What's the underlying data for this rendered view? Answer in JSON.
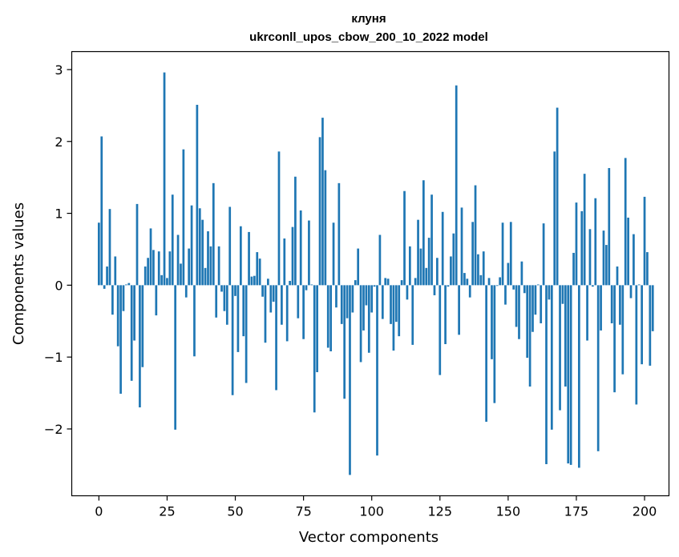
{
  "chart_data": {
    "type": "bar",
    "title": "клуня",
    "subtitle": "ukrconll_upos_cbow_200_10_2022 model",
    "xlabel": "Vector components",
    "ylabel": "Components values",
    "xlim": [
      -9.95,
      208.95
    ],
    "ylim": [
      -2.93,
      3.25
    ],
    "xticks": [
      0,
      25,
      50,
      75,
      100,
      125,
      150,
      175,
      200
    ],
    "yticks": [
      -2,
      -1,
      0,
      1,
      2,
      3
    ],
    "ytick_labels": [
      "−2",
      "−1",
      "0",
      "1",
      "2",
      "3"
    ],
    "bar_color": "#1f77b4",
    "grid": false,
    "values": [
      0.87,
      2.07,
      -0.05,
      0.26,
      1.06,
      -0.41,
      0.4,
      -0.85,
      -1.51,
      -0.36,
      0.01,
      0.03,
      -1.33,
      -0.77,
      1.13,
      -1.7,
      -1.14,
      0.26,
      0.38,
      0.79,
      0.49,
      -0.42,
      0.47,
      0.14,
      2.96,
      0.1,
      0.47,
      1.26,
      -2.01,
      0.7,
      0.3,
      1.89,
      -0.17,
      0.51,
      1.11,
      -0.99,
      2.51,
      1.07,
      0.91,
      0.24,
      0.75,
      0.54,
      1.42,
      -0.45,
      0.54,
      -0.09,
      -0.36,
      -0.55,
      1.09,
      -1.53,
      -0.15,
      -0.93,
      0.82,
      -0.71,
      -1.36,
      0.74,
      0.12,
      0.13,
      0.46,
      0.37,
      -0.16,
      -0.8,
      0.09,
      -0.38,
      -0.23,
      -1.46,
      1.86,
      -0.55,
      0.65,
      -0.78,
      0.06,
      0.81,
      1.51,
      -0.46,
      1.04,
      -0.75,
      -0.07,
      0.9,
      0.01,
      -1.77,
      -1.21,
      2.06,
      2.33,
      1.6,
      -0.87,
      -0.92,
      0.87,
      -0.31,
      1.42,
      -0.54,
      -1.58,
      -0.46,
      -2.64,
      -0.38,
      0.07,
      0.51,
      -1.07,
      -0.63,
      -0.28,
      -0.94,
      -0.38,
      -0.02,
      -2.37,
      0.7,
      -0.47,
      0.1,
      0.09,
      -0.54,
      -0.91,
      -0.51,
      -0.71,
      0.07,
      1.31,
      -0.2,
      0.54,
      -0.83,
      0.1,
      0.91,
      0.51,
      1.46,
      0.24,
      0.66,
      1.26,
      -0.14,
      0.38,
      -1.25,
      1.02,
      -0.82,
      -0.02,
      0.4,
      0.72,
      2.78,
      -0.69,
      1.08,
      0.17,
      0.09,
      -0.17,
      0.88,
      1.39,
      0.43,
      0.14,
      0.47,
      -1.9,
      0.1,
      -1.03,
      -1.64,
      -0.01,
      0.11,
      0.87,
      -0.27,
      0.31,
      0.88,
      -0.06,
      -0.58,
      -0.75,
      0.33,
      -0.11,
      -1.01,
      -1.41,
      -0.65,
      -0.41,
      0.01,
      -0.53,
      0.86,
      -2.49,
      -0.2,
      -2.01,
      1.86,
      2.47,
      -1.74,
      -0.26,
      -1.41,
      -2.48,
      -2.5,
      0.45,
      1.15,
      -2.54,
      1.03,
      1.55,
      -0.77,
      0.78,
      -0.02,
      1.21,
      -2.31,
      -0.63,
      0.76,
      0.56,
      1.63,
      -0.53,
      -1.49,
      0.26,
      -0.55,
      -1.24,
      1.77,
      0.94,
      -0.18,
      0.71,
      -1.66,
      0.01,
      -1.1,
      1.23,
      0.46,
      -1.12,
      -0.64
    ]
  }
}
